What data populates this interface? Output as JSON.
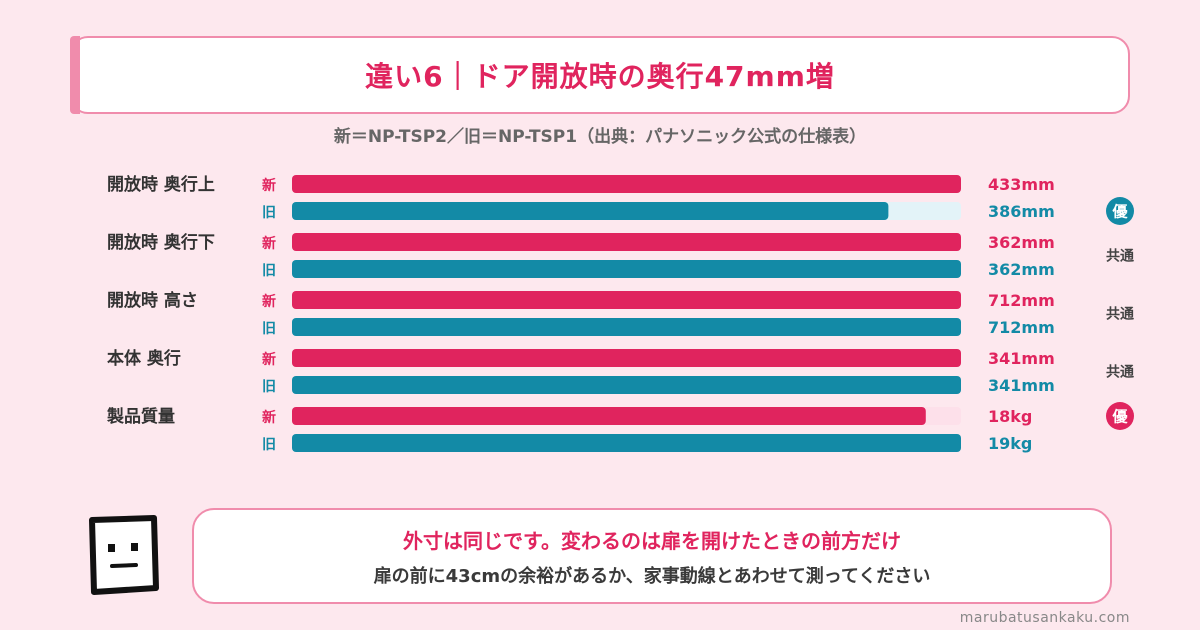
{
  "title": "違い6｜ドア開放時の奥行47mm増",
  "subtitle": "新＝NP-TSP2／旧＝NP-TSP1（出典：パナソニック公式の仕様表）",
  "chart_data": {
    "type": "bar",
    "orientation": "horizontal",
    "categories": [
      "開放時 奥行上",
      "開放時 奥行下",
      "開放時 高さ",
      "本体 奥行",
      "製品質量"
    ],
    "series": [
      {
        "name": "新",
        "color": "#e0245e",
        "track_color": "#fde0ea",
        "values": [
          433,
          362,
          712,
          341,
          18
        ],
        "labels": [
          "433mm",
          "362mm",
          "712mm",
          "341mm",
          "18kg"
        ]
      },
      {
        "name": "旧",
        "color": "#138aa6",
        "track_color": "#e3f3f8",
        "values": [
          386,
          362,
          712,
          341,
          19
        ],
        "labels": [
          "386mm",
          "362mm",
          "712mm",
          "341mm",
          "19kg"
        ]
      }
    ],
    "verdicts": [
      {
        "text": "優",
        "winner": "旧"
      },
      {
        "text": "共通",
        "winner": ""
      },
      {
        "text": "共通",
        "winner": ""
      },
      {
        "text": "共通",
        "winner": ""
      },
      {
        "text": "優",
        "winner": "新"
      }
    ]
  },
  "bubble": {
    "line1": "外寸は同じです。変わるのは扉を開けたときの前方だけ",
    "line2": "扉の前に43cmの余裕があるか、家事動線とあわせて測ってください"
  },
  "footer": "marubatusankaku.com"
}
